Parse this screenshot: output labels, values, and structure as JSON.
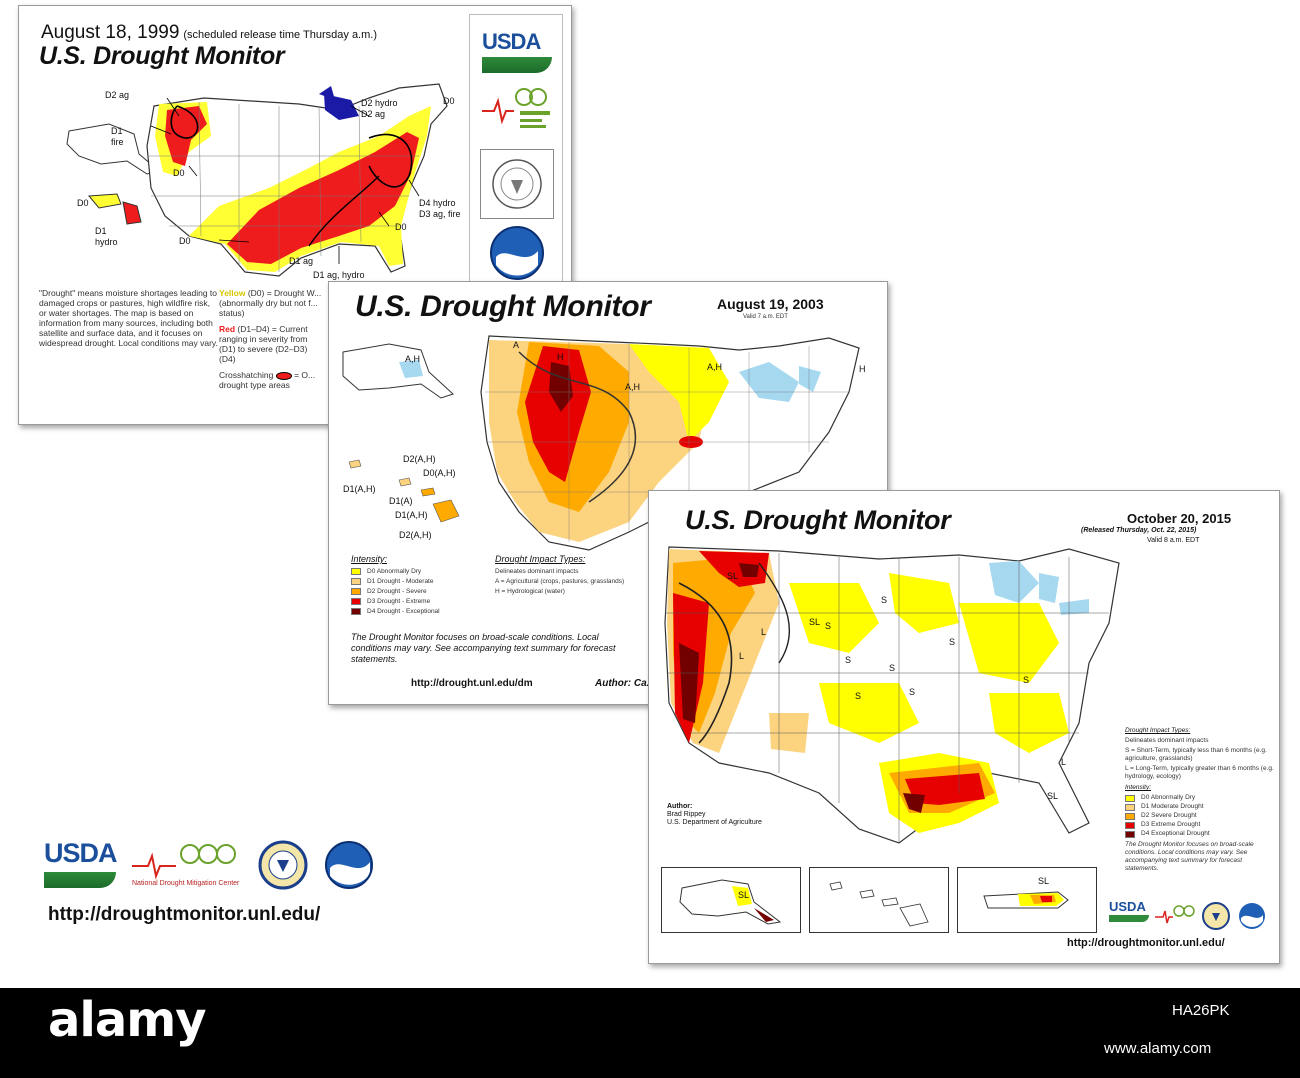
{
  "card_1999": {
    "date": "August 18, 1999",
    "release_note": "(scheduled release time Thursday a.m.)",
    "title": "U.S. Drought Monitor",
    "usda": "USDA",
    "labels": {
      "d2ag": "D2 ag",
      "d1fire": "D1",
      "fire": "fire",
      "d0": "D0",
      "d0_hi": "D0",
      "d1hydro": "D1",
      "hydro": "hydro",
      "d0_south": "D0",
      "d1ag": "D1 ag",
      "d1aghydro": "D1 ag, hydro",
      "d2hydro": "D2 hydro",
      "d2ag_ne": "D2 ag",
      "d0_ne": "D0",
      "d4hydro": "D4 hydro",
      "d3agfire": "D3 ag, fire",
      "d0_se": "D0"
    },
    "description": "\"Drought\" means moisture shortages leading to damaged crops or pastures, high wildfire risk, or water shortages. The map is based on information from many sources, including both satellite and surface data, and it focuses on widespread drought. Local conditions may vary.",
    "legend_yellow_word": "Yellow",
    "legend_yellow": " (D0) = Drought W...",
    "legend_yellow_2": "(abnormally dry but not f...",
    "legend_yellow_3": "status)",
    "legend_red_word": "Red",
    "legend_red": " (D1–D4) = Current",
    "legend_red_2": "ranging in severity from",
    "legend_red_3": "(D1) to severe (D2–D3)",
    "legend_red_4": "(D4)",
    "legend_cross": "Crosshatching",
    "legend_cross_2": "= O...",
    "legend_cross_3": "drought type areas",
    "colors": {
      "d0": "#ffff33",
      "red": "#ee1c1c",
      "wet": "#1a1aa6"
    }
  },
  "card_2003": {
    "title": "U.S. Drought Monitor",
    "date": "August 19, 2003",
    "valid": "Valid 7 a.m. EDT",
    "labels": {
      "ah_ak": "A,H",
      "d2ah_1": "D2(A,H)",
      "d0ah": "D0(A,H)",
      "d1ah": "D1(A,H)",
      "d1a": "D1(A)",
      "d1ah_2": "D1(A,H)",
      "d2ah_2": "D2(A,H)",
      "ah_1": "A,H",
      "ah_2": "A,H",
      "h_ne": "H",
      "a_nw": "A",
      "h_1": "H"
    },
    "intensity_title": "Intensity:",
    "intensity": [
      {
        "label": "D0 Abnormally Dry",
        "color": "#ffff00"
      },
      {
        "label": "D1 Drought - Moderate",
        "color": "#fcd37f"
      },
      {
        "label": "D2 Drought - Severe",
        "color": "#ffaa00"
      },
      {
        "label": "D3 Drought - Extreme",
        "color": "#e60000"
      },
      {
        "label": "D4 Drought - Exceptional",
        "color": "#730000"
      }
    ],
    "impact_title": "Drought Impact Types:",
    "impacts": [
      "Delineates dominant impacts",
      "A = Agricultural (crops, pastures, grasslands)",
      "H = Hydrological (water)"
    ],
    "focus": "The Drought Monitor focuses on broad-scale conditions. Local conditions may vary. See accompanying text summary for forecast statements.",
    "url": "http://drought.unl.edu/dm",
    "author": "Author: Ca..."
  },
  "card_2015": {
    "title": "U.S. Drought Monitor",
    "date": "October 20, 2015",
    "released": "(Released Thursday, Oct. 22, 2015)",
    "valid": "Valid 8 a.m. EDT",
    "map_labels": {
      "s1": "S",
      "s2": "S",
      "s3": "S",
      "s4": "S",
      "s5": "S",
      "s6": "S",
      "s7": "S",
      "s8": "S",
      "sl1": "SL",
      "sl2": "SL",
      "sl3": "SL",
      "l1": "L",
      "l2": "L",
      "l3": "L"
    },
    "impact_title": "Drought Impact Types:",
    "impacts": [
      "Delineates dominant impacts",
      "S = Short-Term, typically less than 6 months (e.g. agriculture, grasslands)",
      "L = Long-Term, typically greater than 6 months (e.g. hydrology, ecology)"
    ],
    "intensity_title": "Intensity:",
    "intensity": [
      {
        "label": "D0 Abnormally Dry",
        "color": "#ffff00"
      },
      {
        "label": "D1 Moderate Drought",
        "color": "#fcd37f"
      },
      {
        "label": "D2 Severe Drought",
        "color": "#ffaa00"
      },
      {
        "label": "D3 Extreme Drought",
        "color": "#e60000"
      },
      {
        "label": "D4 Exceptional Drought",
        "color": "#730000"
      }
    ],
    "focus": "The Drought Monitor focuses on broad-scale conditions. Local conditions may vary. See accompanying text summary for forecast statements.",
    "author_label": "Author:",
    "author_name": "Brad Rippey",
    "author_org": "U.S. Department of Agriculture",
    "inset_labels": {
      "ak": "SL",
      "pr": "SL"
    },
    "usda": "USDA",
    "url": "http://droughtmonitor.unl.edu/"
  },
  "bottom": {
    "usda": "USDA",
    "ndmc_caption": "National Drought Mitigation Center",
    "url": "http://droughtmonitor.unl.edu/"
  },
  "watermark": {
    "logo": "alamy",
    "code": "HA26PK",
    "url": "www.alamy.com"
  }
}
